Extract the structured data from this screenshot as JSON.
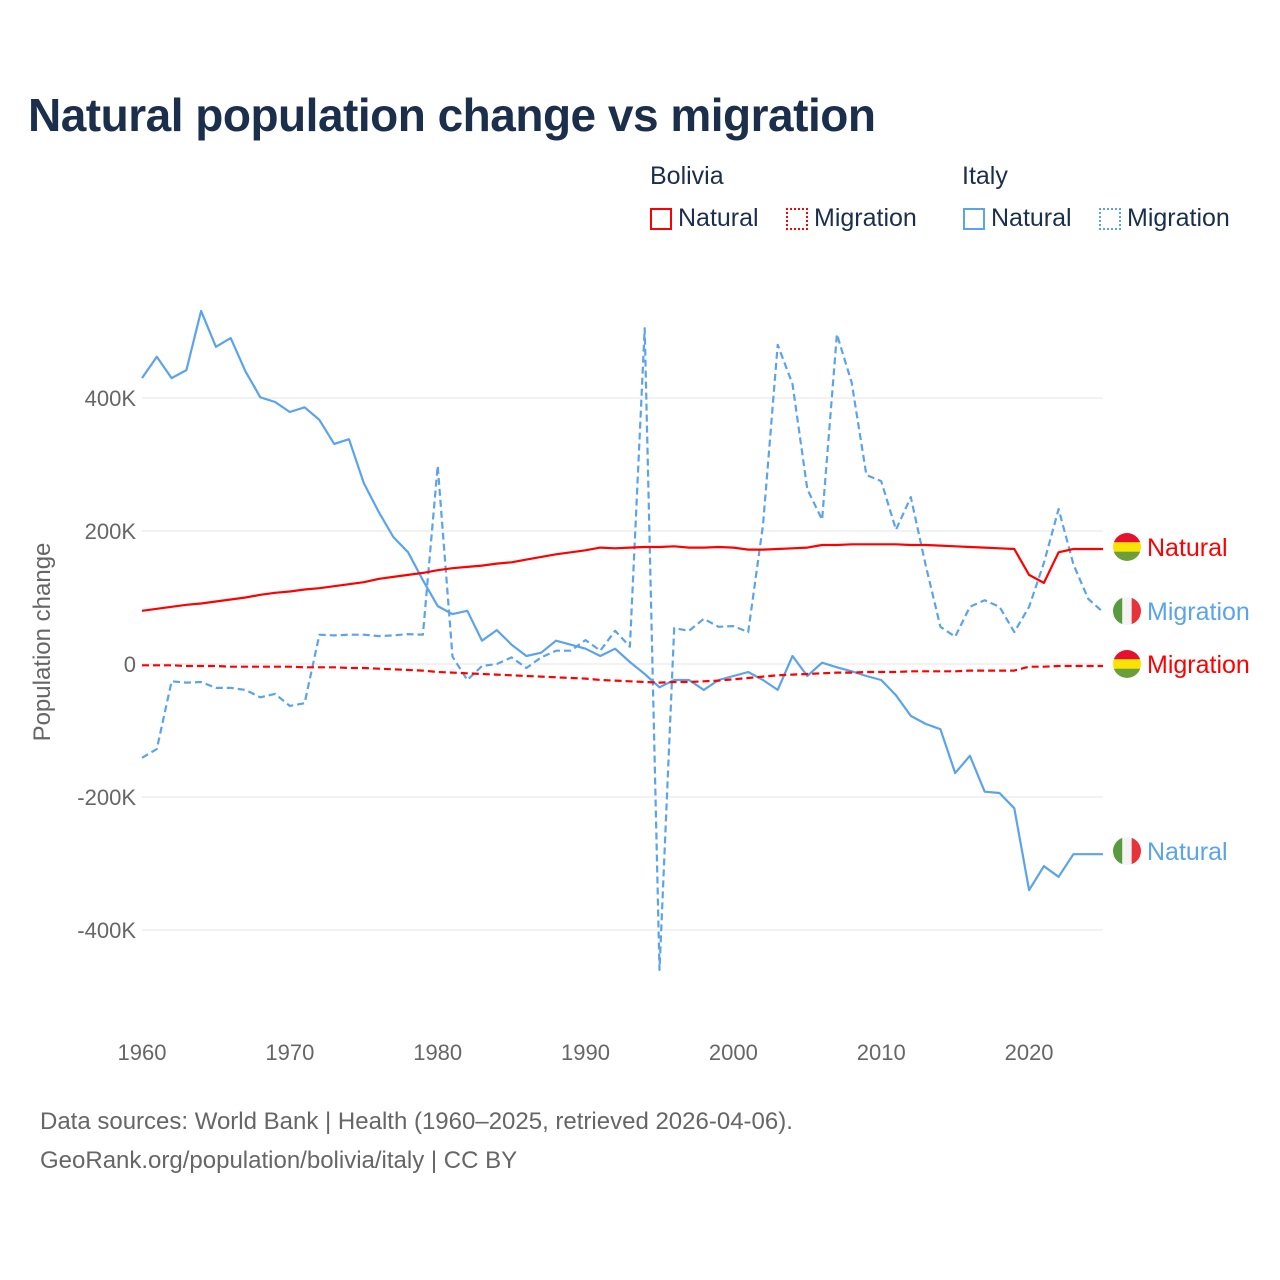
{
  "title": "Natural population change vs migration",
  "legend": {
    "groups": [
      {
        "name": "Bolivia",
        "items": [
          "Natural",
          "Migration"
        ]
      },
      {
        "name": "Italy",
        "items": [
          "Natural",
          "Migration"
        ]
      }
    ]
  },
  "footer": {
    "line1": "Data sources: World Bank | Health (1960–2025, retrieved 2026-04-06).",
    "line2": "GeoRank.org/population/bolivia/italy | CC BY"
  },
  "colors": {
    "bolivia": "#ff0000",
    "italy": "#5ba3ea",
    "grid": "#e6e6e6",
    "axis_text": "#666666"
  },
  "chart_data": {
    "type": "line",
    "title": "Natural population change vs migration",
    "xlabel": "",
    "ylabel": "Population change",
    "xlim": [
      1960,
      2025
    ],
    "ylim": [
      -480,
      540
    ],
    "x_ticks": [
      1960,
      1970,
      1980,
      1990,
      2000,
      2010,
      2020
    ],
    "y_ticks": [
      {
        "value": 400,
        "label": "400K"
      },
      {
        "value": 200,
        "label": "200K"
      },
      {
        "value": 0,
        "label": "0"
      },
      {
        "value": -200,
        "label": "-200K"
      },
      {
        "value": -400,
        "label": "-400K"
      }
    ],
    "units": "thousands",
    "series": [
      {
        "name": "Natural",
        "country": "Bolivia",
        "style": "solid",
        "color": "#ff0000",
        "end_label": "Natural",
        "values": [
          80,
          83,
          86,
          89,
          91,
          94,
          97,
          100,
          104,
          107,
          109,
          112,
          114,
          117,
          120,
          123,
          128,
          131,
          134,
          137,
          141,
          144,
          146,
          148,
          151,
          153,
          157,
          161,
          165,
          168,
          171,
          175,
          174,
          175,
          176,
          176,
          177,
          175,
          175,
          176,
          175,
          172,
          172,
          173,
          174,
          175,
          179,
          179,
          180,
          180,
          180,
          180,
          179,
          179,
          178,
          177,
          176,
          175,
          174,
          173,
          134,
          122,
          168,
          173,
          173,
          173
        ]
      },
      {
        "name": "Migration",
        "country": "Bolivia",
        "style": "dashed",
        "color": "#ff0000",
        "end_label": "Migration",
        "values": [
          -2,
          -2,
          -2,
          -3,
          -3,
          -3,
          -4,
          -4,
          -4,
          -4,
          -4,
          -5,
          -5,
          -5,
          -6,
          -6,
          -7,
          -8,
          -9,
          -10,
          -12,
          -13,
          -14,
          -15,
          -16,
          -17,
          -18,
          -19,
          -20,
          -21,
          -22,
          -24,
          -25,
          -26,
          -27,
          -28,
          -27,
          -27,
          -26,
          -25,
          -23,
          -21,
          -19,
          -17,
          -16,
          -15,
          -14,
          -13,
          -13,
          -12,
          -12,
          -12,
          -11,
          -11,
          -11,
          -11,
          -10,
          -10,
          -10,
          -10,
          -4,
          -4,
          -3,
          -3,
          -3,
          -3
        ]
      },
      {
        "name": "Natural",
        "country": "Italy",
        "style": "solid",
        "color": "#5ba3ea",
        "end_label": "Natural",
        "values": [
          430,
          462,
          430,
          442,
          531,
          477,
          490,
          440,
          401,
          394,
          379,
          386,
          367,
          331,
          338,
          272,
          229,
          191,
          168,
          126,
          87,
          75,
          80,
          35,
          51,
          29,
          12,
          17,
          35,
          29,
          23,
          12,
          23,
          3,
          -15,
          -35,
          -24,
          -24,
          -39,
          -24,
          -18,
          -12,
          -24,
          -39,
          12,
          -18,
          2,
          -5,
          -11,
          -18,
          -24,
          -47,
          -78,
          -90,
          -98,
          -164,
          -138,
          -192,
          -194,
          -217,
          -340,
          -304,
          -320,
          -286,
          -286,
          -286
        ]
      },
      {
        "name": "Migration",
        "country": "Italy",
        "style": "dashed",
        "color": "#5ba3ea",
        "end_label": "Migration",
        "values": [
          -141,
          -128,
          -26,
          -28,
          -27,
          -36,
          -36,
          -39,
          -50,
          -45,
          -63,
          -59,
          44,
          43,
          44,
          44,
          42,
          43,
          45,
          44,
          298,
          11,
          -24,
          -3,
          0,
          10,
          -6,
          10,
          20,
          20,
          36,
          20,
          50,
          26,
          505,
          -460,
          54,
          50,
          68,
          56,
          57,
          48,
          209,
          480,
          421,
          263,
          217,
          496,
          423,
          284,
          275,
          202,
          251,
          149,
          56,
          41,
          86,
          96,
          86,
          48,
          86,
          152,
          233,
          150,
          98,
          78
        ]
      }
    ]
  }
}
